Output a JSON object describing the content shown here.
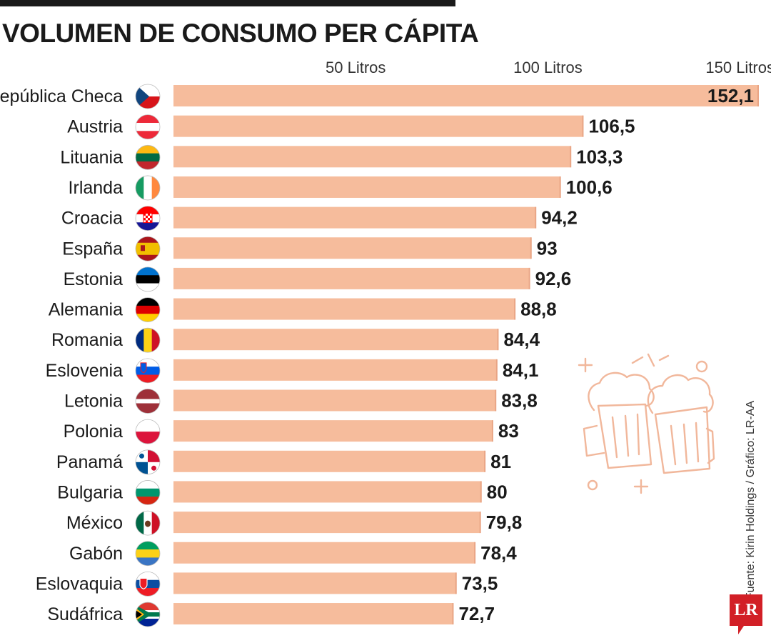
{
  "title": "VOLUMEN DE CONSUMO PER CÁPITA",
  "source": "Fuente: Kirin Holdings / Gráfico: LR-AA",
  "logo": "LR",
  "colors": {
    "bar": "#f6bc9c",
    "bar_edge": "#e9a585",
    "text": "#1a1a1a",
    "illustration": "#f1b79b",
    "logo": "#d21f26"
  },
  "illustration": "beer-mugs-toast-icon",
  "chart_data": {
    "type": "bar",
    "orientation": "horizontal",
    "title": "VOLUMEN DE CONSUMO PER CÁPITA",
    "xlim": [
      0,
      152.1
    ],
    "ticks": [
      {
        "value": 50,
        "label": "50 Litros"
      },
      {
        "value": 100,
        "label": "100 Litros"
      },
      {
        "value": 150,
        "label": "150 Litros"
      }
    ],
    "grid": false,
    "categories": [
      "República Checa",
      "Austria",
      "Lituania",
      "Irlanda",
      "Croacia",
      "España",
      "Estonia",
      "Alemania",
      "Romania",
      "Eslovenia",
      "Letonia",
      "Polonia",
      "Panamá",
      "Bulgaria",
      "México",
      "Gabón",
      "Eslovaquia",
      "Sudáfrica"
    ],
    "values": [
      152.1,
      106.5,
      103.3,
      100.6,
      94.2,
      93,
      92.6,
      88.8,
      84.4,
      84.1,
      83.8,
      83,
      81,
      80,
      79.8,
      78.4,
      73.5,
      72.7
    ],
    "value_labels": [
      "152,1",
      "106,5",
      "103,3",
      "100,6",
      "94,2",
      "93",
      "92,6",
      "88,8",
      "84,4",
      "84,1",
      "83,8",
      "83",
      "81",
      "80",
      "79,8",
      "78,4",
      "73,5",
      "72,7"
    ],
    "flags": [
      "czech-republic-flag-icon",
      "austria-flag-icon",
      "lithuania-flag-icon",
      "ireland-flag-icon",
      "croatia-flag-icon",
      "spain-flag-icon",
      "estonia-flag-icon",
      "germany-flag-icon",
      "romania-flag-icon",
      "slovenia-flag-icon",
      "latvia-flag-icon",
      "poland-flag-icon",
      "panama-flag-icon",
      "bulgaria-flag-icon",
      "mexico-flag-icon",
      "gabon-flag-icon",
      "slovakia-flag-icon",
      "south-africa-flag-icon"
    ]
  }
}
